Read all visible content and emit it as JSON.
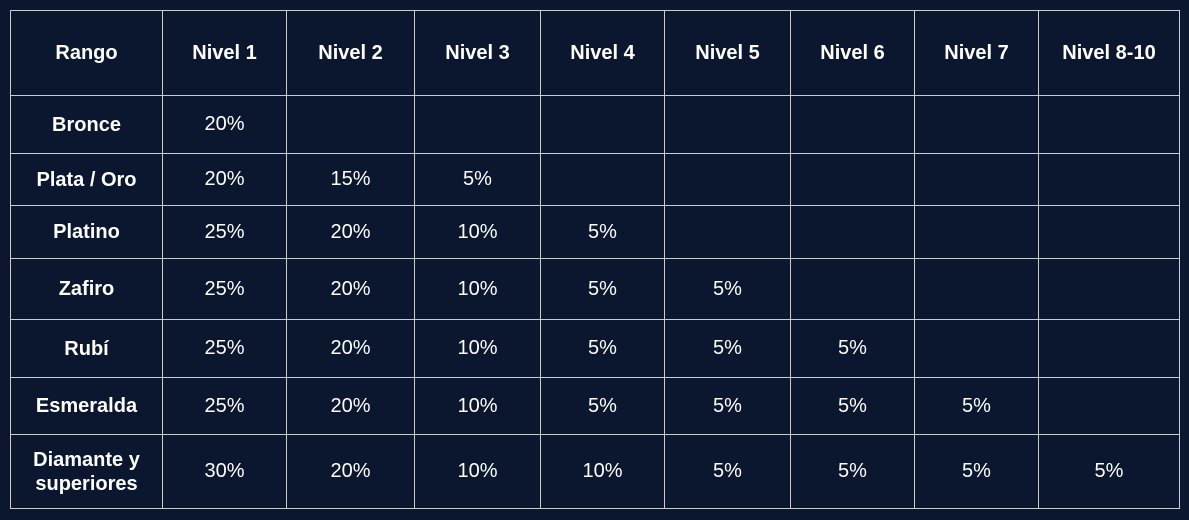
{
  "headers": [
    "Rango",
    "Nivel 1",
    "Nivel 2",
    "Nivel 3",
    "Nivel 4",
    "Nivel 5",
    "Nivel 6",
    "Nivel 7",
    "Nivel 8-10"
  ],
  "rows": [
    {
      "rank": "Bronce",
      "values": [
        "20%",
        "",
        "",
        "",
        "",
        "",
        "",
        ""
      ]
    },
    {
      "rank": "Plata / Oro",
      "values": [
        "20%",
        "15%",
        "5%",
        "",
        "",
        "",
        "",
        ""
      ]
    },
    {
      "rank": "Platino",
      "values": [
        "25%",
        "20%",
        "10%",
        "5%",
        "",
        "",
        "",
        ""
      ]
    },
    {
      "rank": "Zafiro",
      "values": [
        "25%",
        "20%",
        "10%",
        "5%",
        "5%",
        "",
        "",
        ""
      ]
    },
    {
      "rank": "Rubí",
      "values": [
        "25%",
        "20%",
        "10%",
        "5%",
        "5%",
        "5%",
        "",
        ""
      ]
    },
    {
      "rank": "Esmeralda",
      "values": [
        "25%",
        "20%",
        "10%",
        "5%",
        "5%",
        "5%",
        "5%",
        ""
      ]
    },
    {
      "rank": "Diamante y superiores",
      "values": [
        "30%",
        "20%",
        "10%",
        "10%",
        "5%",
        "5%",
        "5%",
        "5%"
      ]
    }
  ],
  "colors": {
    "background": "#0b172e",
    "border": "#c9ccd3",
    "text": "#ffffff"
  }
}
